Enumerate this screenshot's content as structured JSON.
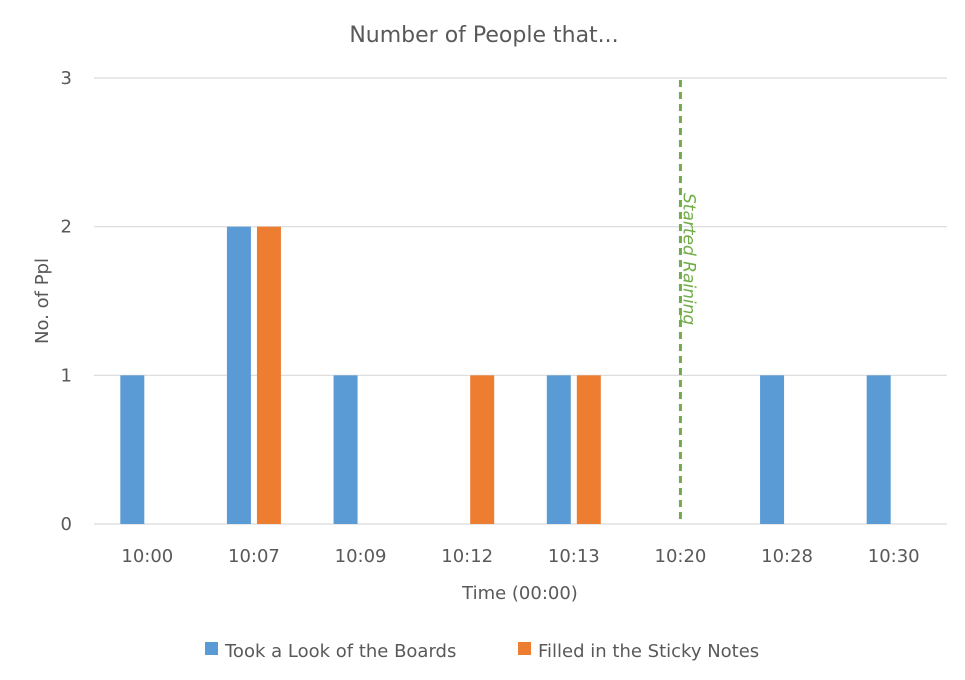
{
  "chart_data": {
    "type": "bar",
    "title": "Number of People that...",
    "xlabel": "Time (00:00)",
    "ylabel": "No. of Ppl",
    "categories": [
      "10:00",
      "10:07",
      "10:09",
      "10:12",
      "10:13",
      "10:20",
      "10:28",
      "10:30"
    ],
    "series": [
      {
        "name": "Took a Look of the Boards",
        "color": "#5b9bd5",
        "values": [
          1,
          2,
          1,
          0,
          1,
          0,
          1,
          1
        ]
      },
      {
        "name": "Filled in the Sticky Notes",
        "color": "#ed7d31",
        "values": [
          0,
          2,
          0,
          1,
          1,
          0,
          0,
          0
        ]
      }
    ],
    "ylim": [
      0,
      3
    ],
    "yticks": [
      "0",
      "1",
      "2",
      "3"
    ],
    "grid": true,
    "legend_position": "bottom",
    "annotation": {
      "text": "Started Raining",
      "at_category": "10:20",
      "line_style": "dashed",
      "color": "#70ad47"
    }
  }
}
